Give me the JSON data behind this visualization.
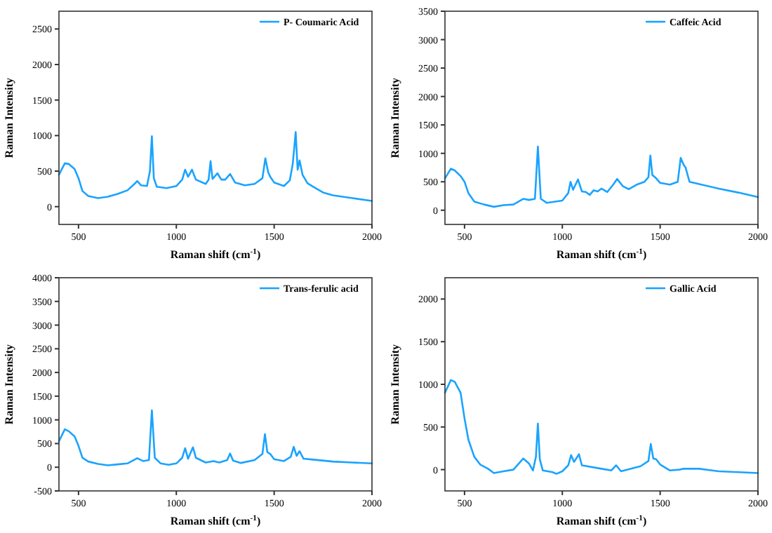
{
  "chart_data": [
    {
      "type": "line",
      "xlabel": "Raman shift (cm$^{-1}$)",
      "ylabel": "Raman Intensity",
      "xlim": [
        400,
        2000
      ],
      "xticks": [
        500,
        1000,
        1500,
        2000
      ],
      "ylim": [
        -250,
        2750
      ],
      "yticks": [
        0,
        500,
        1000,
        1500,
        2000,
        2500
      ],
      "legend": "top right",
      "line_style": "solid",
      "x": [
        400,
        430,
        450,
        480,
        500,
        520,
        550,
        600,
        650,
        700,
        750,
        790,
        800,
        820,
        850,
        865,
        875,
        885,
        900,
        950,
        1000,
        1030,
        1045,
        1060,
        1080,
        1100,
        1150,
        1165,
        1175,
        1185,
        1210,
        1230,
        1250,
        1275,
        1300,
        1350,
        1400,
        1440,
        1455,
        1470,
        1480,
        1500,
        1550,
        1580,
        1595,
        1610,
        1620,
        1630,
        1645,
        1670,
        1700,
        1750,
        1800,
        1900,
        2000
      ],
      "series": [
        {
          "name": "P- Coumaric Acid",
          "color": "#1aa3ff",
          "values": [
            450,
            610,
            600,
            530,
            400,
            220,
            150,
            120,
            140,
            180,
            230,
            330,
            360,
            300,
            290,
            500,
            990,
            400,
            280,
            260,
            290,
            380,
            520,
            420,
            520,
            380,
            320,
            380,
            640,
            390,
            470,
            380,
            380,
            460,
            340,
            300,
            320,
            400,
            680,
            480,
            420,
            340,
            290,
            370,
            600,
            1050,
            520,
            650,
            450,
            330,
            280,
            200,
            160,
            120,
            80
          ]
        }
      ]
    },
    {
      "type": "line",
      "xlabel": "Raman shift (cm$^{-1}$)",
      "ylabel": "Raman Intensity",
      "xlim": [
        400,
        2000
      ],
      "xticks": [
        500,
        1000,
        1500,
        2000
      ],
      "ylim": [
        -250,
        3500
      ],
      "yticks": [
        0,
        500,
        1000,
        1500,
        2000,
        2500,
        3000,
        3500
      ],
      "legend": "top right",
      "line_style": "solid",
      "x": [
        400,
        430,
        450,
        480,
        500,
        520,
        550,
        600,
        650,
        700,
        750,
        800,
        830,
        860,
        875,
        890,
        920,
        1000,
        1030,
        1042,
        1055,
        1080,
        1100,
        1120,
        1140,
        1160,
        1180,
        1200,
        1230,
        1260,
        1280,
        1310,
        1340,
        1380,
        1420,
        1440,
        1450,
        1460,
        1480,
        1500,
        1550,
        1590,
        1605,
        1620,
        1630,
        1650,
        1700,
        1800,
        1900,
        2000
      ],
      "series": [
        {
          "name": "Caffeic Acid",
          "color": "#1aa3ff",
          "values": [
            560,
            730,
            700,
            600,
            500,
            300,
            150,
            100,
            60,
            90,
            100,
            200,
            180,
            200,
            1120,
            200,
            130,
            170,
            300,
            500,
            360,
            540,
            330,
            320,
            270,
            350,
            330,
            380,
            320,
            450,
            550,
            420,
            370,
            450,
            500,
            580,
            960,
            620,
            560,
            480,
            450,
            500,
            920,
            800,
            750,
            500,
            460,
            380,
            310,
            230
          ]
        }
      ]
    },
    {
      "type": "line",
      "xlabel": "Raman shift (cm$^{-1}$)",
      "ylabel": "Raman Intensity",
      "xlim": [
        400,
        2000
      ],
      "xticks": [
        500,
        1000,
        1500,
        2000
      ],
      "ylim": [
        -500,
        4000
      ],
      "yticks": [
        -500,
        0,
        500,
        1000,
        1500,
        2000,
        2500,
        3000,
        3500,
        4000
      ],
      "legend": "top right",
      "line_style": "solid",
      "x": [
        400,
        430,
        450,
        480,
        500,
        520,
        550,
        600,
        650,
        700,
        750,
        800,
        830,
        860,
        875,
        890,
        920,
        960,
        1000,
        1030,
        1045,
        1060,
        1085,
        1100,
        1150,
        1190,
        1220,
        1260,
        1275,
        1290,
        1330,
        1400,
        1440,
        1453,
        1465,
        1480,
        1500,
        1550,
        1585,
        1600,
        1615,
        1630,
        1650,
        1700,
        1800,
        1900,
        2000
      ],
      "series": [
        {
          "name": "Trans-ferulic acid",
          "color": "#1aa3ff",
          "values": [
            550,
            800,
            760,
            650,
            450,
            200,
            120,
            70,
            40,
            60,
            80,
            190,
            130,
            150,
            1200,
            200,
            80,
            50,
            80,
            200,
            400,
            180,
            420,
            200,
            100,
            130,
            100,
            150,
            290,
            140,
            90,
            150,
            280,
            700,
            320,
            280,
            170,
            130,
            220,
            430,
            240,
            340,
            180,
            160,
            120,
            100,
            80
          ]
        }
      ]
    },
    {
      "type": "line",
      "xlabel": "Raman shift (cm$^{-1}$)",
      "ylabel": "Raman Intensity",
      "xlim": [
        400,
        2000
      ],
      "xticks": [
        500,
        1000,
        1500,
        2000
      ],
      "ylim": [
        -250,
        2250
      ],
      "yticks": [
        0,
        500,
        1000,
        1500,
        2000
      ],
      "legend": "top right",
      "line_style": "solid",
      "x": [
        400,
        430,
        450,
        480,
        500,
        520,
        550,
        580,
        620,
        650,
        700,
        750,
        800,
        830,
        850,
        865,
        875,
        885,
        900,
        950,
        970,
        1000,
        1030,
        1045,
        1060,
        1085,
        1100,
        1200,
        1250,
        1275,
        1300,
        1400,
        1440,
        1452,
        1465,
        1480,
        1500,
        1550,
        1600,
        1620,
        1700,
        1800,
        2000
      ],
      "series": [
        {
          "name": "Gallic Acid",
          "color": "#1aa3ff",
          "values": [
            900,
            1050,
            1030,
            900,
            600,
            350,
            150,
            60,
            10,
            -40,
            -20,
            0,
            130,
            70,
            -10,
            150,
            540,
            120,
            -10,
            -30,
            -50,
            -20,
            50,
            170,
            90,
            180,
            50,
            10,
            -10,
            50,
            -20,
            40,
            100,
            300,
            130,
            120,
            60,
            -10,
            0,
            10,
            10,
            -20,
            -40
          ]
        }
      ]
    }
  ]
}
